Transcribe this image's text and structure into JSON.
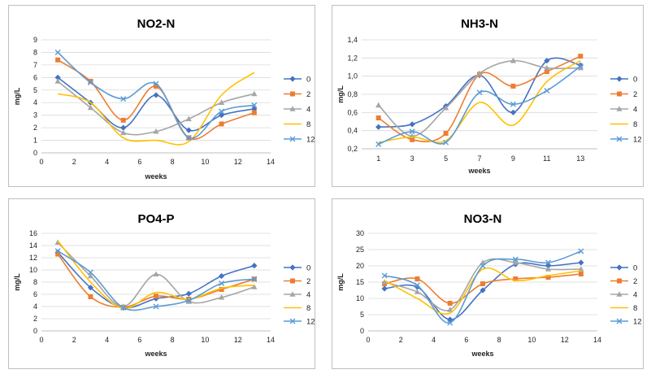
{
  "chart_data": [
    {
      "type": "line",
      "title": "NO2-N",
      "xlabel": "weeks",
      "ylabel": "mg/L",
      "xlim": [
        0,
        14
      ],
      "xticks": [
        "0",
        "2",
        "4",
        "6",
        "8",
        "10",
        "12",
        "14"
      ],
      "ylim": [
        0,
        9
      ],
      "yticks": [
        "0",
        "1",
        "2",
        "3",
        "4",
        "5",
        "6",
        "7",
        "8",
        "9"
      ],
      "x": [
        1,
        3,
        5,
        7,
        9,
        11,
        13
      ],
      "smooth": true,
      "legend_position": "right",
      "series": [
        {
          "name": "0",
          "color": "#4472C4",
          "marker": "diamond",
          "values": [
            6.0,
            4.0,
            2.0,
            4.6,
            1.8,
            3.0,
            3.5
          ]
        },
        {
          "name": "2",
          "color": "#ED7D31",
          "marker": "square",
          "values": [
            7.4,
            5.7,
            2.6,
            5.3,
            1.2,
            2.3,
            3.2
          ]
        },
        {
          "name": "4",
          "color": "#A5A5A5",
          "marker": "triangle",
          "values": [
            5.7,
            3.6,
            1.6,
            1.7,
            2.7,
            4.0,
            4.7
          ]
        },
        {
          "name": "8",
          "color": "#FFC000",
          "marker": "none",
          "values": [
            4.7,
            4.0,
            1.2,
            1.0,
            0.9,
            4.6,
            6.4
          ]
        },
        {
          "name": "12",
          "color": "#5B9BD5",
          "marker": "x",
          "values": [
            8.0,
            5.6,
            4.3,
            5.5,
            1.2,
            3.3,
            3.8
          ]
        }
      ]
    },
    {
      "type": "line",
      "title": "NH3-N",
      "xlabel": "weeks",
      "ylabel": "mg/L",
      "x_categorical": true,
      "categories": [
        "1",
        "3",
        "5",
        "7",
        "9",
        "11",
        "13"
      ],
      "ylim": [
        0.2,
        1.4
      ],
      "yticks": [
        "0,2",
        "0,4",
        "0,6",
        "0,8",
        "1,0",
        "1,2",
        "1,4"
      ],
      "smooth": true,
      "legend_position": "right",
      "series": [
        {
          "name": "0",
          "color": "#4472C4",
          "marker": "diamond",
          "values": [
            0.44,
            0.47,
            0.67,
            1.01,
            0.6,
            1.17,
            1.12
          ]
        },
        {
          "name": "2",
          "color": "#ED7D31",
          "marker": "square",
          "values": [
            0.54,
            0.3,
            0.37,
            1.02,
            0.89,
            1.05,
            1.22
          ]
        },
        {
          "name": "4",
          "color": "#A5A5A5",
          "marker": "triangle",
          "values": [
            0.68,
            0.34,
            0.65,
            1.03,
            1.17,
            1.09,
            1.09
          ]
        },
        {
          "name": "8",
          "color": "#FFC000",
          "marker": "none",
          "values": [
            0.27,
            0.33,
            0.29,
            0.71,
            0.46,
            0.94,
            1.17
          ]
        },
        {
          "name": "12",
          "color": "#5B9BD5",
          "marker": "x",
          "values": [
            0.25,
            0.39,
            0.27,
            0.82,
            0.69,
            0.84,
            1.11
          ]
        }
      ]
    },
    {
      "type": "line",
      "title": "PO4-P",
      "xlabel": "weeks",
      "ylabel": "mg/L",
      "xlim": [
        0,
        14
      ],
      "xticks": [
        "0",
        "2",
        "4",
        "6",
        "8",
        "10",
        "12",
        "14"
      ],
      "ylim": [
        0,
        16
      ],
      "yticks": [
        "0",
        "2",
        "4",
        "6",
        "8",
        "10",
        "12",
        "14",
        "16"
      ],
      "x": [
        1,
        3,
        5,
        7,
        9,
        11,
        13
      ],
      "smooth": true,
      "legend_position": "right",
      "series": [
        {
          "name": "0",
          "color": "#4472C4",
          "marker": "diamond",
          "values": [
            12.9,
            7.1,
            3.8,
            5.3,
            6.1,
            9.0,
            10.7
          ]
        },
        {
          "name": "2",
          "color": "#ED7D31",
          "marker": "square",
          "values": [
            12.6,
            5.6,
            3.9,
            5.7,
            5.2,
            6.8,
            8.5
          ]
        },
        {
          "name": "4",
          "color": "#A5A5A5",
          "marker": "triangle",
          "values": [
            14.5,
            9.0,
            4.0,
            9.3,
            4.8,
            5.5,
            7.2
          ]
        },
        {
          "name": "8",
          "color": "#FFC000",
          "marker": "none",
          "values": [
            14.8,
            8.0,
            3.7,
            6.3,
            5.2,
            7.0,
            7.5
          ]
        },
        {
          "name": "12",
          "color": "#5B9BD5",
          "marker": "x",
          "values": [
            13.1,
            9.6,
            3.8,
            4.0,
            5.0,
            7.8,
            8.5
          ]
        }
      ]
    },
    {
      "type": "line",
      "title": "NO3-N",
      "xlabel": "weeks",
      "ylabel": "mg/L",
      "xlim": [
        0,
        14
      ],
      "xticks": [
        "0",
        "2",
        "4",
        "6",
        "8",
        "10",
        "12",
        "14"
      ],
      "ylim": [
        0,
        30
      ],
      "yticks": [
        "0",
        "5",
        "10",
        "15",
        "20",
        "25",
        "30"
      ],
      "x": [
        1,
        3,
        5,
        7,
        9,
        11,
        13
      ],
      "smooth": true,
      "legend_position": "right",
      "series": [
        {
          "name": "0",
          "color": "#4472C4",
          "marker": "diamond",
          "values": [
            13.0,
            13.5,
            3.5,
            12.5,
            20.5,
            20.0,
            21.0
          ]
        },
        {
          "name": "2",
          "color": "#ED7D31",
          "marker": "square",
          "values": [
            14.5,
            16.0,
            8.5,
            14.5,
            16.0,
            16.5,
            17.5
          ]
        },
        {
          "name": "4",
          "color": "#A5A5A5",
          "marker": "triangle",
          "values": [
            15.0,
            12.0,
            6.5,
            21.0,
            21.0,
            19.0,
            19.0
          ]
        },
        {
          "name": "8",
          "color": "#FFC000",
          "marker": "none",
          "values": [
            15.5,
            10.0,
            5.5,
            19.0,
            15.5,
            17.0,
            18.5
          ]
        },
        {
          "name": "12",
          "color": "#5B9BD5",
          "marker": "x",
          "values": [
            17.0,
            14.0,
            2.5,
            20.0,
            22.0,
            21.0,
            24.5
          ]
        }
      ]
    }
  ]
}
